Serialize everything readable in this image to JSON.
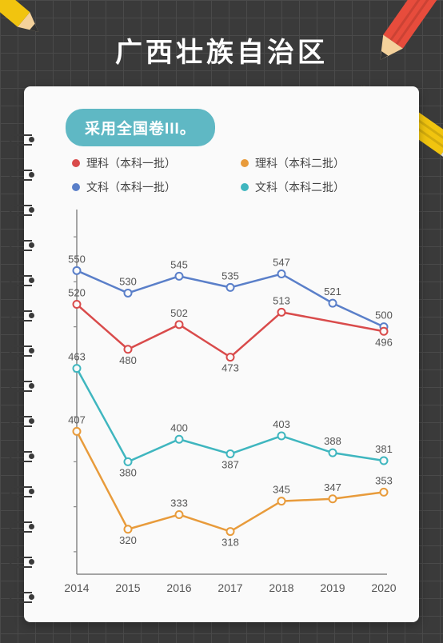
{
  "title": "广西壮族自治区",
  "pill": "采用全国卷III。",
  "legend": [
    {
      "label": "理科（本科一批）",
      "color": "#d94b4b"
    },
    {
      "label": "理科（本科二批）",
      "color": "#e89b3b"
    },
    {
      "label": "文科（本科一批）",
      "color": "#5a7fc9"
    },
    {
      "label": "文科（本科二批）",
      "color": "#3fb6bf"
    }
  ],
  "chart": {
    "type": "line",
    "pad": {
      "l": 18,
      "r": 18,
      "t": 10,
      "b": 30
    },
    "ylim": [
      280,
      600
    ],
    "years": [
      "2014",
      "2015",
      "2016",
      "2017",
      "2018",
      "2019",
      "2020"
    ],
    "series": [
      {
        "color": "#5a7fc9",
        "values": [
          550,
          530,
          545,
          535,
          547,
          521,
          500
        ],
        "labelPos": [
          "above",
          "above",
          "above",
          "above",
          "above",
          "above",
          "above"
        ]
      },
      {
        "color": "#d94b4b",
        "values": [
          520,
          480,
          502,
          473,
          513,
          null,
          496
        ],
        "labelPos": [
          "above",
          "below",
          "above",
          "below",
          "above",
          null,
          "below"
        ]
      },
      {
        "color": "#3fb6bf",
        "values": [
          463,
          380,
          400,
          387,
          403,
          388,
          381
        ],
        "labelPos": [
          "above",
          "below",
          "above",
          "below",
          "above",
          "above",
          "above"
        ]
      },
      {
        "color": "#e89b3b",
        "values": [
          407,
          320,
          333,
          318,
          345,
          347,
          353
        ],
        "labelPos": [
          "above",
          "below",
          "above",
          "below",
          "above",
          "above",
          "above"
        ]
      }
    ],
    "marker_r": 4.5,
    "font_label": 13,
    "font_xaxis": 14,
    "axis_color": "#888"
  },
  "spiral": {
    "count": 14,
    "start": 60,
    "step": 44
  },
  "pencils": {
    "red": {
      "body": "#e74c3c",
      "tip": "#f4d19b",
      "lead": "#333",
      "ferrule": "#ddd",
      "eraser": "#f8b3b3"
    },
    "yellow": {
      "body": "#f1c40f",
      "tip": "#f4d19b",
      "lead": "#333",
      "ferrule": "#ddd",
      "eraser": "#f8b3b3"
    }
  }
}
